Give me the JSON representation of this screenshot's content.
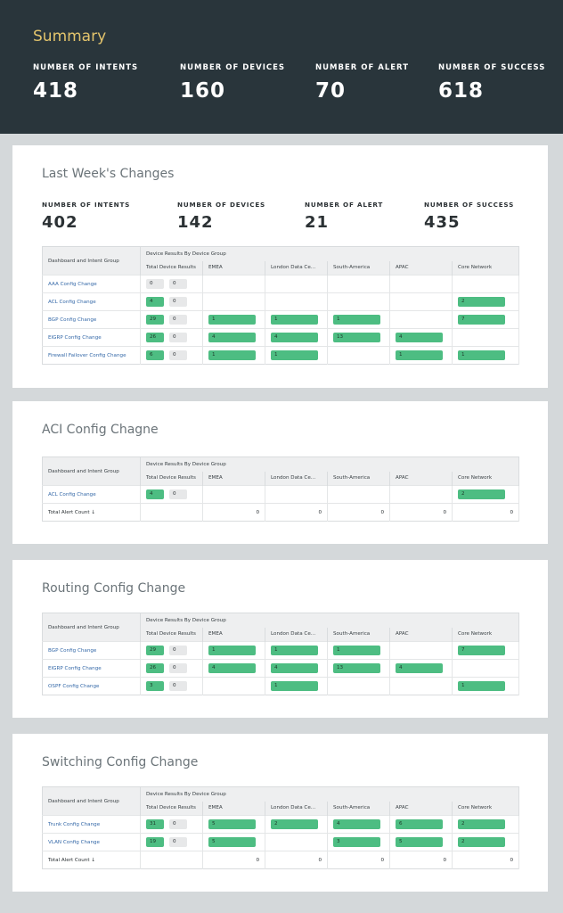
{
  "summary": {
    "title": "Summary",
    "stats": [
      {
        "label": "NUMBER OF INTENTS",
        "value": "418"
      },
      {
        "label": "NUMBER OF DEVICES",
        "value": "160"
      },
      {
        "label": "NUMBER OF ALERT",
        "value": "70"
      },
      {
        "label": "NUMBER OF SUCCESS",
        "value": "618"
      }
    ]
  },
  "table_headers": {
    "group": "Dashboard and Intent Group",
    "device_results": "Device Results By Device Group",
    "columns": [
      "Total Device Results",
      "EMEA",
      "London Data Ce...",
      "South-America",
      "APAC",
      "Core Network"
    ]
  },
  "colors": {
    "header_bg": "#29353b",
    "title_accent": "#e3c46c",
    "green": "#4dbd82",
    "link": "#3569a8"
  },
  "last_week": {
    "title": "Last Week's Changes",
    "stats": [
      {
        "label": "NUMBER OF INTENTS",
        "value": "402"
      },
      {
        "label": "NUMBER OF DEVICES",
        "value": "142"
      },
      {
        "label": "NUMBER OF ALERT",
        "value": "21"
      },
      {
        "label": "NUMBER OF SUCCESS",
        "value": "435"
      }
    ],
    "rows": [
      {
        "name": "AAA Config Change",
        "total": [
          "0",
          "0"
        ],
        "total_green": false,
        "emea": "",
        "london": "",
        "south": "",
        "apac": "",
        "core": ""
      },
      {
        "name": "ACL Config Change",
        "total": [
          "4",
          "0"
        ],
        "total_green": true,
        "emea": "",
        "london": "",
        "south": "",
        "apac": "",
        "core": "2"
      },
      {
        "name": "BGP Config Change",
        "total": [
          "29",
          "0"
        ],
        "total_green": true,
        "emea": "1",
        "london": "1",
        "south": "1",
        "apac": "",
        "core": "7"
      },
      {
        "name": "EIGRP Config Change",
        "total": [
          "26",
          "0"
        ],
        "total_green": true,
        "emea": "4",
        "london": "4",
        "south": "13",
        "apac": "4",
        "core": ""
      },
      {
        "name": "Firewall Failover Config Change",
        "total": [
          "6",
          "0"
        ],
        "total_green": true,
        "emea": "1",
        "london": "1",
        "south": "",
        "apac": "1",
        "core": "1"
      }
    ]
  },
  "acl": {
    "title": "ACI Config Chagne",
    "rows": [
      {
        "name": "ACL Config Change",
        "total": [
          "4",
          "0"
        ],
        "total_green": true,
        "emea": "",
        "london": "",
        "south": "",
        "apac": "",
        "core": "2"
      }
    ],
    "total_row": {
      "label": "Total Alert Count ↓",
      "values": [
        "0",
        "0",
        "0",
        "0",
        "0"
      ]
    }
  },
  "routing": {
    "title": "Routing Config Change",
    "rows": [
      {
        "name": "BGP Config Change",
        "total": [
          "29",
          "0"
        ],
        "total_green": true,
        "emea": "1",
        "london": "1",
        "south": "1",
        "apac": "",
        "core": "7"
      },
      {
        "name": "EIGRP Config Change",
        "total": [
          "26",
          "0"
        ],
        "total_green": true,
        "emea": "4",
        "london": "4",
        "south": "13",
        "apac": "4",
        "core": ""
      },
      {
        "name": "OSPF Config Change",
        "total": [
          "3",
          "0"
        ],
        "total_green": true,
        "emea": "",
        "london": "1",
        "south": "",
        "apac": "",
        "core": "1"
      }
    ]
  },
  "switching": {
    "title": "Switching Config Change",
    "rows": [
      {
        "name": "Trunk Config Change",
        "total": [
          "31",
          "0"
        ],
        "total_green": true,
        "emea": "5",
        "london": "2",
        "south": "4",
        "apac": "6",
        "core": "2"
      },
      {
        "name": "VLAN Config Change",
        "total": [
          "19",
          "0"
        ],
        "total_green": true,
        "emea": "5",
        "london": "",
        "south": "3",
        "apac": "5",
        "core": "2"
      }
    ],
    "total_row": {
      "label": "Total Alert Count ↓",
      "values": [
        "0",
        "0",
        "0",
        "0",
        "0"
      ]
    }
  }
}
